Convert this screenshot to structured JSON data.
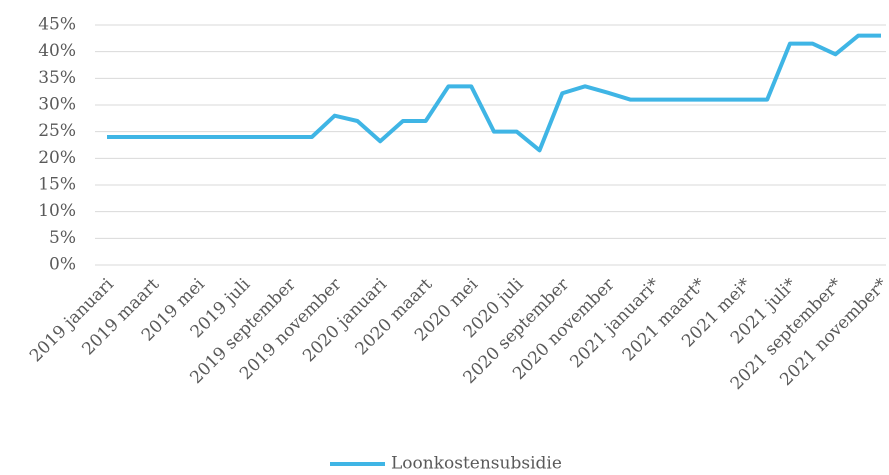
{
  "chart_data": {
    "type": "line",
    "categories": [
      "2019 januari",
      null,
      "2019 maart",
      null,
      "2019 mei",
      null,
      "2019 juli",
      null,
      "2019 september",
      null,
      "2019 november",
      null,
      "2020 januari",
      null,
      "2020 maart",
      null,
      "2020 mei",
      null,
      "2020 juli",
      null,
      "2020 september",
      null,
      "2020 november",
      null,
      "2021 januari*",
      null,
      "2021 maart*",
      null,
      "2021 mei*",
      null,
      "2021 juli*",
      null,
      "2021 september*",
      null,
      "2021 november*"
    ],
    "series": [
      {
        "name": "Loonkostensubsidie",
        "color": "#3fb5e5",
        "values": [
          24,
          24,
          24,
          24,
          24,
          24,
          24,
          24,
          24,
          24,
          28,
          27,
          23.2,
          27,
          27,
          33.5,
          33.5,
          25,
          25,
          21.5,
          32.2,
          33.5,
          32.3,
          31,
          31,
          31,
          31,
          31,
          31,
          31,
          41.5,
          41.5,
          39.5,
          43,
          43
        ]
      }
    ],
    "ylim": [
      0,
      45
    ],
    "yticks": [
      {
        "value": 0,
        "label": "0%"
      },
      {
        "value": 5,
        "label": "5%"
      },
      {
        "value": 10,
        "label": "10%"
      },
      {
        "value": 15,
        "label": "15%"
      },
      {
        "value": 20,
        "label": "20%"
      },
      {
        "value": 25,
        "label": "25%"
      },
      {
        "value": 30,
        "label": "30%"
      },
      {
        "value": 35,
        "label": "35%"
      },
      {
        "value": 40,
        "label": "40%"
      },
      {
        "value": 45,
        "label": "45%"
      }
    ],
    "grid": true,
    "legend": "bottom"
  }
}
